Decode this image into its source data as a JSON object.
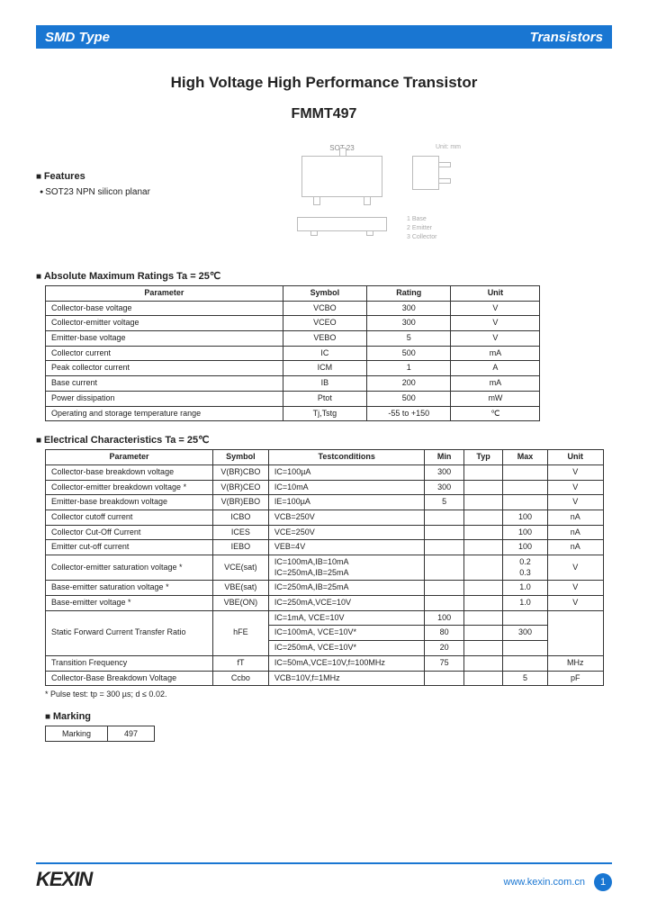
{
  "header": {
    "left": "SMD Type",
    "right": "Transistors",
    "bar_color": "#1976d2"
  },
  "title": "High Voltage High Performance Transistor",
  "subtitle": "FMMT497",
  "features": {
    "heading": "Features",
    "items": [
      "SOT23 NPN silicon planar"
    ]
  },
  "package_label": "SOT 23",
  "package_unit": "Unit: mm",
  "pin_labels": [
    "1 Base",
    "2 Emitter",
    "3 Collector"
  ],
  "amr": {
    "heading": "Absolute Maximum Ratings Ta = 25℃",
    "columns": [
      "Parameter",
      "Symbol",
      "Rating",
      "Unit"
    ],
    "rows": [
      [
        "Collector-base voltage",
        "VCBO",
        "300",
        "V"
      ],
      [
        "Collector-emitter voltage",
        "VCEO",
        "300",
        "V"
      ],
      [
        "Emitter-base voltage",
        "VEBO",
        "5",
        "V"
      ],
      [
        "Collector current",
        "IC",
        "500",
        "mA"
      ],
      [
        "Peak collector current",
        "ICM",
        "1",
        "A"
      ],
      [
        "Base current",
        "IB",
        "200",
        "mA"
      ],
      [
        "Power dissipation",
        "Ptot",
        "500",
        "mW"
      ],
      [
        "Operating and storage temperature range",
        "Tj,Tstg",
        "-55 to +150",
        "℃"
      ]
    ]
  },
  "elec": {
    "heading": "Electrical Characteristics Ta = 25℃",
    "columns": [
      "Parameter",
      "Symbol",
      "Testconditions",
      "Min",
      "Typ",
      "Max",
      "Unit"
    ],
    "rows": [
      {
        "p": "Collector-base breakdown voltage",
        "s": "V(BR)CBO",
        "c": "IC=100µA",
        "min": "300",
        "typ": "",
        "max": "",
        "u": "V"
      },
      {
        "p": "Collector-emitter breakdown voltage *",
        "s": "V(BR)CEO",
        "c": "IC=10mA",
        "min": "300",
        "typ": "",
        "max": "",
        "u": "V"
      },
      {
        "p": "Emitter-base breakdown voltage",
        "s": "V(BR)EBO",
        "c": "IE=100µA",
        "min": "5",
        "typ": "",
        "max": "",
        "u": "V"
      },
      {
        "p": "Collector cutoff current",
        "s": "ICBO",
        "c": "VCB=250V",
        "min": "",
        "typ": "",
        "max": "100",
        "u": "nA"
      },
      {
        "p": "Collector Cut-Off Current",
        "s": "ICES",
        "c": "VCE=250V",
        "min": "",
        "typ": "",
        "max": "100",
        "u": "nA"
      },
      {
        "p": "Emitter cut-off current",
        "s": "IEBO",
        "c": "VEB=4V",
        "min": "",
        "typ": "",
        "max": "100",
        "u": "nA"
      },
      {
        "p": "Collector-emitter saturation voltage *",
        "s": "VCE(sat)",
        "c": "IC=100mA,IB=10mA\nIC=250mA,IB=25mA",
        "min": "",
        "typ": "",
        "max": "0.2\n0.3",
        "u": "V"
      },
      {
        "p": "Base-emitter saturation voltage *",
        "s": "VBE(sat)",
        "c": "IC=250mA,IB=25mA",
        "min": "",
        "typ": "",
        "max": "1.0",
        "u": "V"
      },
      {
        "p": "Base-emitter voltage *",
        "s": "VBE(ON)",
        "c": "IC=250mA,VCE=10V",
        "min": "",
        "typ": "",
        "max": "1.0",
        "u": "V"
      }
    ],
    "hfe_label": "Static Forward Current Transfer Ratio",
    "hfe_symbol": "hFE",
    "hfe_rows": [
      {
        "c": "IC=1mA, VCE=10V",
        "min": "100",
        "typ": "",
        "max": ""
      },
      {
        "c": "IC=100mA, VCE=10V*",
        "min": "80",
        "typ": "",
        "max": "300"
      },
      {
        "c": "IC=250mA, VCE=10V*",
        "min": "20",
        "typ": "",
        "max": ""
      }
    ],
    "tail_rows": [
      {
        "p": "Transition Frequency",
        "s": "fT",
        "c": "IC=50mA,VCE=10V,f=100MHz",
        "min": "75",
        "typ": "",
        "max": "",
        "u": "MHz"
      },
      {
        "p": "Collector-Base Breakdown Voltage",
        "s": "Ccbo",
        "c": "VCB=10V,f=1MHz",
        "min": "",
        "typ": "",
        "max": "5",
        "u": "pF"
      }
    ]
  },
  "footnote": "* Pulse test: tp = 300 µs; d ≤ 0.02.",
  "marking": {
    "heading": "Marking",
    "label": "Marking",
    "value": "497"
  },
  "footer": {
    "logo": "KEXIN",
    "url": "www.kexin.com.cn",
    "page": "1"
  }
}
